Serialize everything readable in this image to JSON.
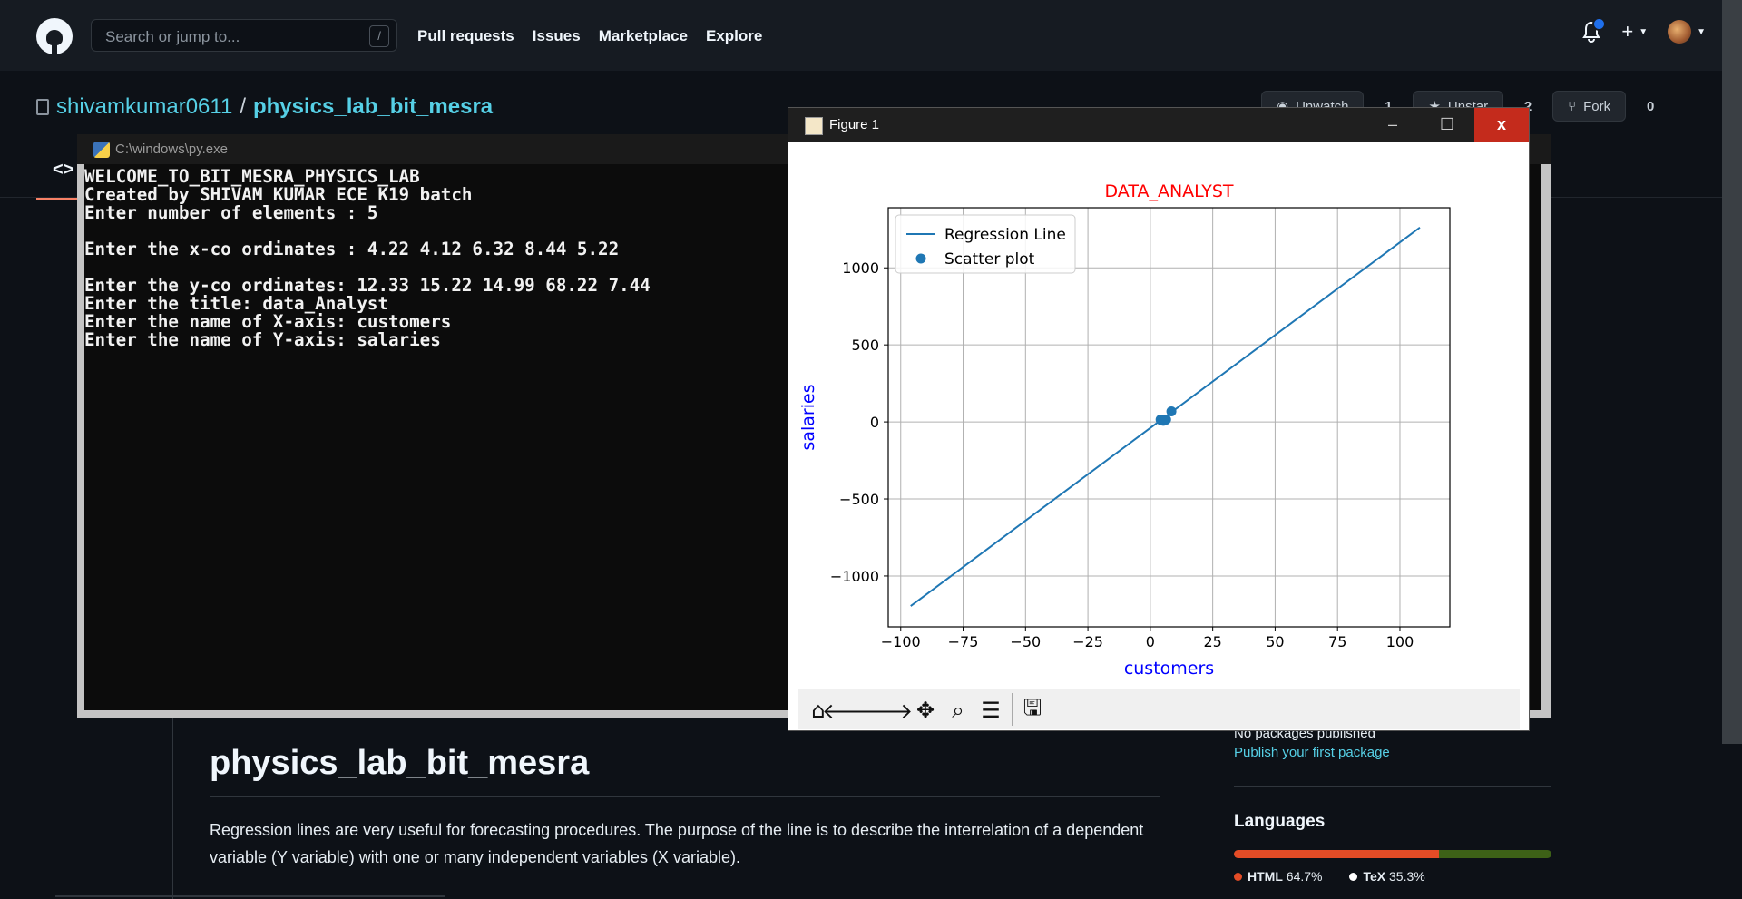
{
  "github": {
    "search_placeholder": "Search or jump to...",
    "search_shortcut": "/",
    "nav": [
      "Pull requests",
      "Issues",
      "Marketplace",
      "Explore"
    ],
    "owner": "shivamkumar0611",
    "separator": "/",
    "repo": "physics_lab_bit_mesra",
    "watch_label": "Unwatch",
    "watch_count": "1",
    "star_label": "Unstar",
    "star_count": "2",
    "fork_label": "Fork",
    "fork_count": "0",
    "code_tab_icon": "<>",
    "readme_title": "physics_lab_bit_mesra",
    "readme_text": "Regression lines are very useful for forecasting procedures. The purpose of the line is to describe the interrelation of a dependent variable (Y variable) with one or many independent variables (X variable).",
    "packages_none": "No packages published",
    "packages_link": "Publish your first package",
    "languages_heading": "Languages",
    "languages": [
      {
        "name": "HTML",
        "percent": "64.7%",
        "value": 64.7,
        "color": "#e34c26"
      },
      {
        "name": "TeX",
        "percent": "35.3%",
        "value": 35.3,
        "color": "#3d6117"
      }
    ]
  },
  "console": {
    "title": "C:\\windows\\py.exe",
    "lines": [
      "WELCOME_TO_BIT_MESRA_PHYSICS_LAB",
      "Created by SHIVAM KUMAR ECE K19 batch",
      "Enter number of elements : 5",
      "",
      "Enter the x-co ordinates : 4.22 4.12 6.32 8.44 5.22",
      "",
      "Enter the y-co ordinates: 12.33 15.22 14.99 68.22 7.44",
      "Enter the title: data_Analyst",
      "Enter the name of X-axis: customers",
      "Enter the name of Y-axis: salaries"
    ]
  },
  "figure": {
    "window_title": "Figure 1",
    "minimize": "–",
    "maximize": "☐",
    "close": "x"
  },
  "chart_data": {
    "type": "scatter",
    "title": "DATA_ANALYST",
    "xlabel": "customers",
    "ylabel": "salaries",
    "xlim": [
      -105,
      120
    ],
    "ylim": [
      -1330,
      1390
    ],
    "xticks": [
      -100,
      -75,
      -50,
      -25,
      0,
      25,
      50,
      75,
      100
    ],
    "xtick_labels": [
      "−100",
      "−75",
      "−50",
      "−25",
      "0",
      "25",
      "50",
      "75",
      "100"
    ],
    "yticks": [
      -1000,
      -500,
      0,
      500,
      1000
    ],
    "ytick_labels": [
      "−1000",
      "−500",
      "0",
      "500",
      "1000"
    ],
    "grid": true,
    "legend_position": "upper-left",
    "title_color": "#ff0000",
    "label_color": "#0000ff",
    "series": [
      {
        "name": "Regression Line",
        "kind": "line",
        "color": "#1f77b4",
        "x": [
          -96,
          108
        ],
        "y": [
          -1195,
          1262
        ]
      },
      {
        "name": "Scatter plot",
        "kind": "scatter",
        "color": "#1f77b4",
        "x": [
          4.22,
          4.12,
          6.32,
          8.44,
          5.22
        ],
        "y": [
          12.33,
          15.22,
          14.99,
          68.22,
          7.44
        ]
      }
    ]
  }
}
